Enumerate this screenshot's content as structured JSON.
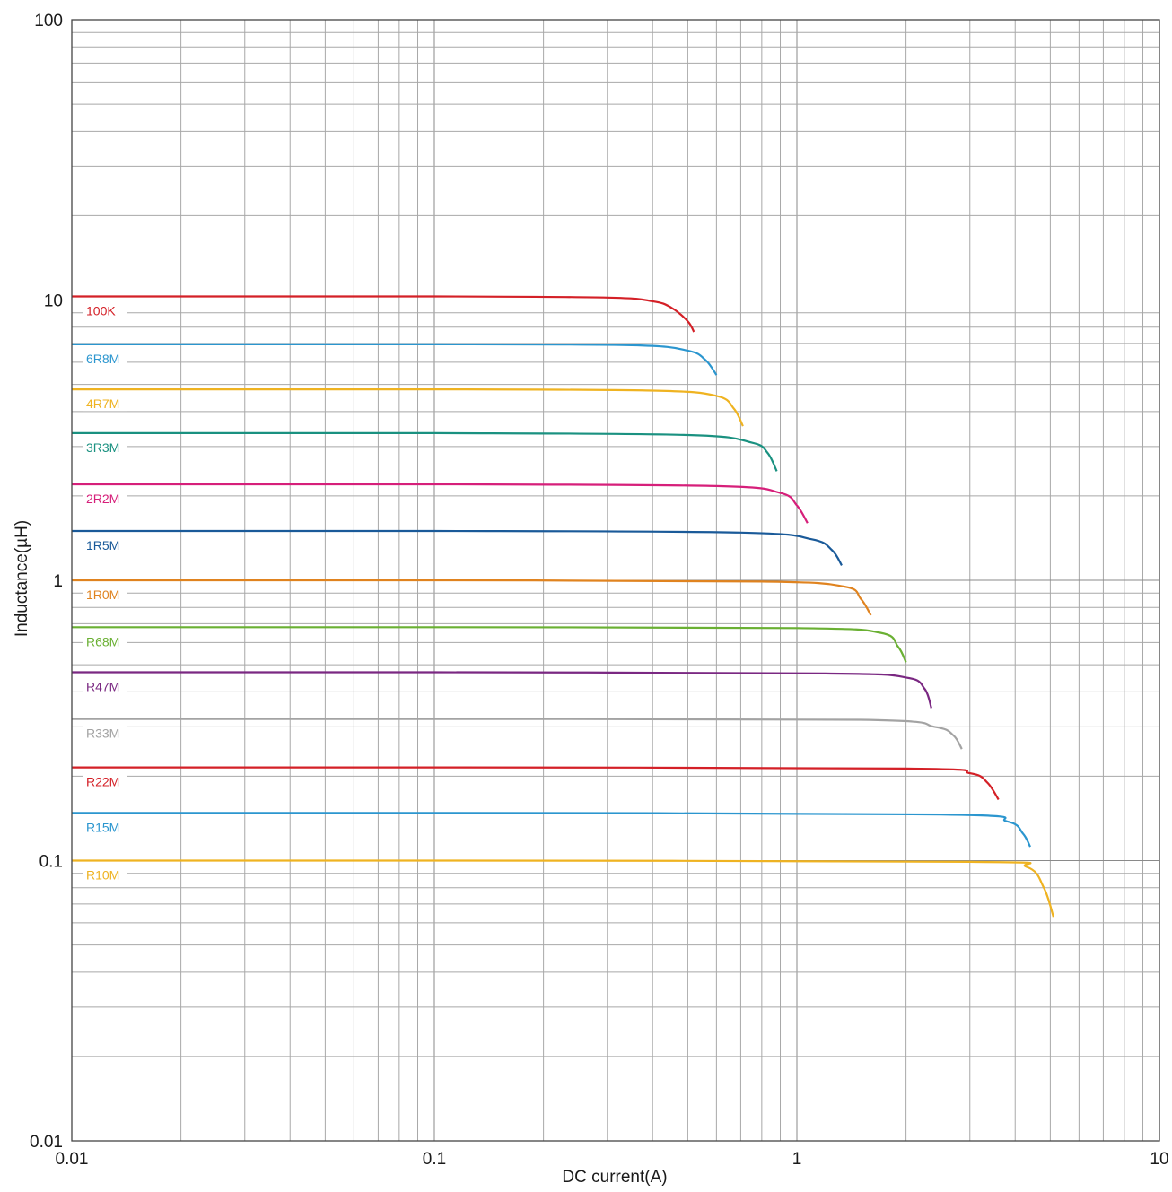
{
  "chart_data": {
    "type": "line",
    "title": "",
    "xlabel": "DC current(A)",
    "ylabel": "Inductance(µH)",
    "xscale": "log",
    "yscale": "log",
    "xlim": [
      0.01,
      10
    ],
    "ylim": [
      0.01,
      100
    ],
    "grid": true,
    "x_tick_labels": [
      {
        "value": 0.01,
        "label": "0.01"
      },
      {
        "value": 0.1,
        "label": "0.1"
      },
      {
        "value": 1,
        "label": "1"
      },
      {
        "value": 10,
        "label": "10"
      }
    ],
    "y_tick_labels": [
      {
        "value": 0.01,
        "label": "0.01"
      },
      {
        "value": 0.1,
        "label": "0.1"
      },
      {
        "value": 1,
        "label": "1"
      },
      {
        "value": 10,
        "label": "10"
      },
      {
        "value": 100,
        "label": "100"
      }
    ],
    "series": [
      {
        "name": "100K",
        "color": "#d42027",
        "x": [
          0.01,
          0.1,
          0.3,
          0.4,
          0.45,
          0.5,
          0.52
        ],
        "y": [
          10.3,
          10.3,
          10.2,
          9.9,
          9.4,
          8.4,
          7.7
        ]
      },
      {
        "name": "6R8M",
        "color": "#2b96cf",
        "x": [
          0.01,
          0.1,
          0.35,
          0.5,
          0.56,
          0.6
        ],
        "y": [
          6.95,
          6.95,
          6.9,
          6.6,
          6.1,
          5.4
        ]
      },
      {
        "name": "4R7M",
        "color": "#efb321",
        "x": [
          0.01,
          0.1,
          0.4,
          0.6,
          0.67,
          0.71
        ],
        "y": [
          4.8,
          4.8,
          4.75,
          4.55,
          4.1,
          3.55
        ]
      },
      {
        "name": "3R3M",
        "color": "#1a9180",
        "x": [
          0.01,
          0.1,
          0.5,
          0.75,
          0.83,
          0.88
        ],
        "y": [
          3.35,
          3.35,
          3.3,
          3.1,
          2.85,
          2.45
        ]
      },
      {
        "name": "2R2M",
        "color": "#d61f7a",
        "x": [
          0.01,
          0.1,
          0.6,
          0.9,
          1.0,
          1.07
        ],
        "y": [
          2.2,
          2.2,
          2.17,
          2.05,
          1.85,
          1.6
        ]
      },
      {
        "name": "1R5M",
        "color": "#1a5a99",
        "x": [
          0.01,
          0.1,
          0.7,
          1.1,
          1.25,
          1.33
        ],
        "y": [
          1.5,
          1.5,
          1.48,
          1.4,
          1.28,
          1.13
        ]
      },
      {
        "name": "1R0M",
        "color": "#e0831f",
        "x": [
          0.01,
          0.1,
          0.8,
          1.35,
          1.5,
          1.6
        ],
        "y": [
          1.0,
          1.0,
          0.99,
          0.95,
          0.86,
          0.75
        ]
      },
      {
        "name": "R68M",
        "color": "#6ab033",
        "x": [
          0.01,
          0.1,
          1.0,
          1.7,
          1.9,
          2.0
        ],
        "y": [
          0.68,
          0.68,
          0.675,
          0.65,
          0.58,
          0.51
        ]
      },
      {
        "name": "R47M",
        "color": "#7a2882",
        "x": [
          0.01,
          0.1,
          1.2,
          2.0,
          2.25,
          2.35
        ],
        "y": [
          0.47,
          0.47,
          0.465,
          0.45,
          0.41,
          0.35
        ]
      },
      {
        "name": "R33M",
        "color": "#a3a3a3",
        "x": [
          0.01,
          0.1,
          1.5,
          2.4,
          2.7,
          2.85
        ],
        "y": [
          0.32,
          0.32,
          0.318,
          0.3,
          0.28,
          0.25
        ]
      },
      {
        "name": "R22M",
        "color": "#d42027",
        "x": [
          0.01,
          0.1,
          2.0,
          3.0,
          3.35,
          3.6
        ],
        "y": [
          0.215,
          0.215,
          0.213,
          0.205,
          0.19,
          0.165
        ]
      },
      {
        "name": "R15M",
        "color": "#2b96cf",
        "x": [
          0.01,
          0.1,
          2.5,
          3.8,
          4.2,
          4.4
        ],
        "y": [
          0.148,
          0.148,
          0.146,
          0.138,
          0.125,
          0.112
        ]
      },
      {
        "name": "R10M",
        "color": "#efb321",
        "x": [
          0.01,
          0.1,
          3.0,
          4.3,
          4.8,
          5.1
        ],
        "y": [
          0.1,
          0.1,
          0.099,
          0.095,
          0.08,
          0.063
        ]
      }
    ]
  }
}
